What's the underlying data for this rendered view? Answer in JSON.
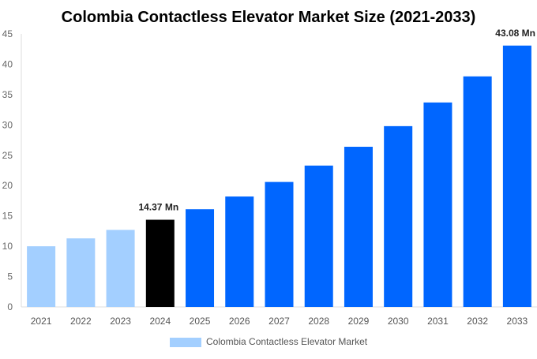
{
  "chart_data": {
    "type": "bar",
    "title": "Colombia Contactless Elevator Market Size (2021-2033)",
    "xlabel": "",
    "ylabel": "",
    "ylim": [
      0,
      45
    ],
    "yticks": [
      0,
      5,
      10,
      15,
      20,
      25,
      30,
      35,
      40,
      45
    ],
    "grid": false,
    "legend_placement": "bottom",
    "categories": [
      "2021",
      "2022",
      "2023",
      "2024",
      "2025",
      "2026",
      "2027",
      "2028",
      "2029",
      "2030",
      "2031",
      "2032",
      "2033"
    ],
    "series": [
      {
        "name": "Colombia Contactless Elevator Market",
        "values": [
          10.0,
          11.3,
          12.7,
          14.37,
          16.1,
          18.2,
          20.6,
          23.3,
          26.4,
          29.8,
          33.7,
          38.0,
          43.08
        ]
      }
    ],
    "bar_colors": [
      "#a3cfff",
      "#a3cfff",
      "#a3cfff",
      "#000000",
      "#0066ff",
      "#0066ff",
      "#0066ff",
      "#0066ff",
      "#0066ff",
      "#0066ff",
      "#0066ff",
      "#0066ff",
      "#0066ff"
    ],
    "legend_color": "#a3cfff",
    "annotations": [
      {
        "category": "2024",
        "text": "14.37 Mn"
      },
      {
        "category": "2033",
        "text": "43.08 Mn"
      }
    ]
  }
}
